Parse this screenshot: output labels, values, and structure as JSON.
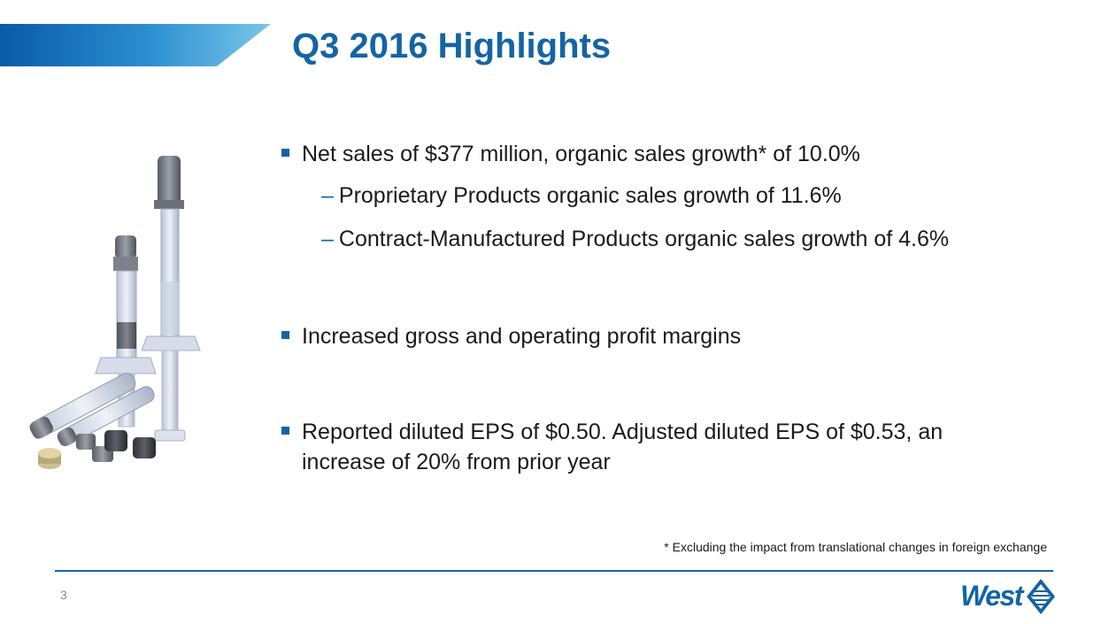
{
  "slide": {
    "title": "Q3 2016 Highlights",
    "page_number": "3",
    "footnote": "* Excluding the impact from translational changes in foreign exchange"
  },
  "bullets": [
    {
      "text": "Net sales of $377 million, organic sales growth* of 10.0%",
      "subs": [
        "Proprietary Products organic sales growth of 11.6%",
        "Contract-Manufactured Products organic sales growth of 4.6%"
      ]
    },
    {
      "text": "Increased gross and operating profit margins"
    },
    {
      "text_line1": "Reported diluted EPS of $0.50.  Adjusted diluted EPS of $0.53, an",
      "text_line2": "increase of 20% from prior year"
    }
  ],
  "sub_dash": "–",
  "logo": {
    "text": "West"
  },
  "colors": {
    "accent_blue": "#1464a5",
    "band_start": "#0a5aa8",
    "band_end": "#79c7ea",
    "text": "#1a1a1a"
  },
  "icons": {
    "bullet": "square-bullet-icon",
    "logo_mark": "diamond-logo-icon"
  }
}
